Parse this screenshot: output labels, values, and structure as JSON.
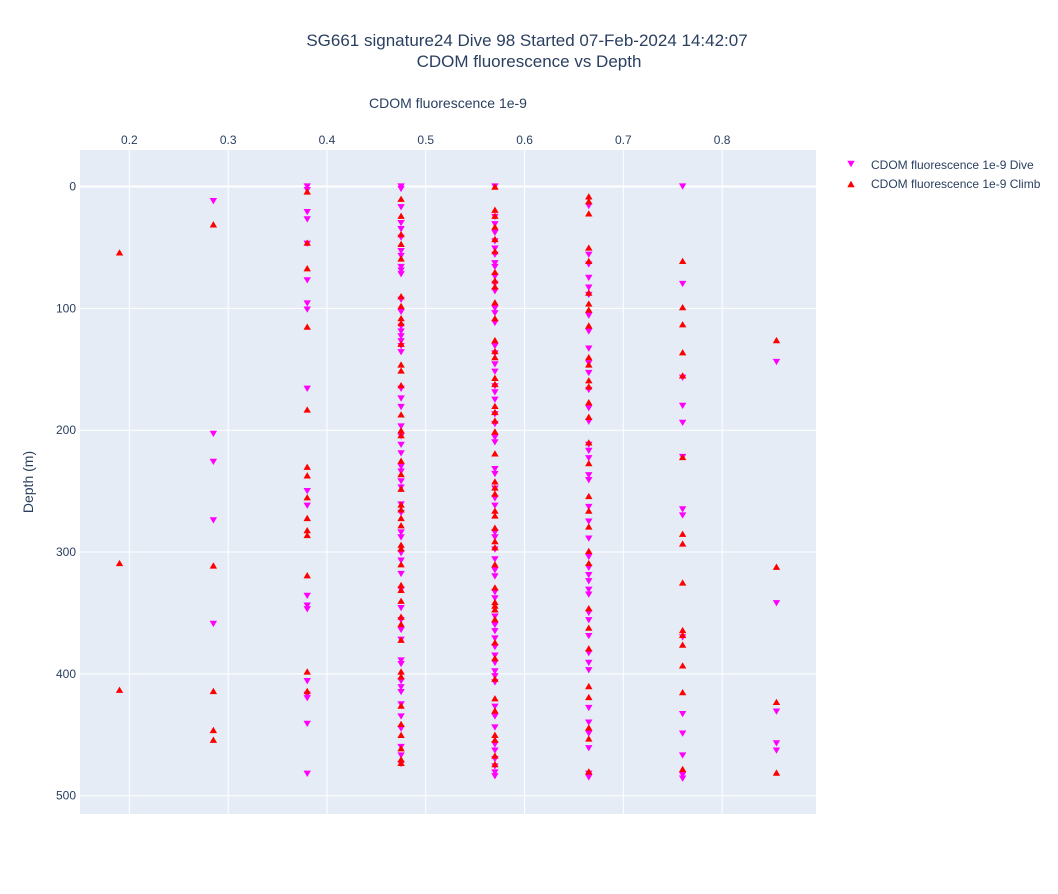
{
  "chart_data": {
    "type": "scatter",
    "title": "SG661 signature24 Dive 98 Started 07-Feb-2024 14:42:07",
    "subtitle": "CDOM fluorescence vs Depth",
    "xlabel": "CDOM fluorescence 1e-9",
    "ylabel": "Depth (m)",
    "x_axis_position": "top",
    "y_axis_reversed": true,
    "xlim": [
      0.15,
      0.895
    ],
    "ylim": [
      -30,
      515
    ],
    "x_ticks": [
      0.2,
      0.3,
      0.4,
      0.5,
      0.6,
      0.7,
      0.8
    ],
    "x_tick_labels": [
      "0.2",
      "0.3",
      "0.4",
      "0.5",
      "0.6",
      "0.7",
      "0.8"
    ],
    "y_ticks": [
      0,
      100,
      200,
      300,
      400,
      500
    ],
    "y_tick_labels": [
      "0",
      "100",
      "200",
      "300",
      "400",
      "500"
    ],
    "grid": true,
    "legend_position": "top-right",
    "series": [
      {
        "name": "CDOM fluorescence 1e-9 Dive",
        "marker": "triangle-down",
        "color": "#ff00ff",
        "columns": [
          {
            "x": 0.285,
            "depths": [
              12,
              203,
              226,
              274,
              359
            ]
          },
          {
            "x": 0.38,
            "depths": [
              0,
              3,
              21,
              27,
              47,
              77,
              96,
              101,
              166,
              250,
              262,
              336,
              344,
              347,
              406,
              417,
              420,
              441,
              482
            ]
          },
          {
            "x": 0.475,
            "depths": [
              0,
              2,
              17,
              30,
              35,
              42,
              53,
              57,
              66,
              69,
              72,
              93,
              103,
              115,
              119,
              123,
              127,
              131,
              136,
              166,
              174,
              181,
              197,
              205,
              212,
              219,
              230,
              234,
              242,
              247,
              261,
              268,
              284,
              288,
              301,
              307,
              318,
              331,
              346,
              356,
              364,
              372,
              389,
              392,
              406,
              411,
              415,
              425,
              435,
              445,
              460,
              467,
              474
            ]
          },
          {
            "x": 0.57,
            "depths": [
              0,
              25,
              31,
              38,
              45,
              51,
              56,
              63,
              66,
              74,
              80,
              86,
              100,
              104,
              112,
              131,
              137,
              146,
              152,
              164,
              169,
              175,
              187,
              195,
              206,
              210,
              232,
              236,
              248,
              256,
              262,
              284,
              288,
              298,
              306,
              315,
              320,
              333,
              338,
              353,
              360,
              365,
              371,
              378,
              385,
              391,
              398,
              402,
              407,
              427,
              435,
              444,
              458,
              463,
              470,
              476,
              481,
              484
            ]
          },
          {
            "x": 0.665,
            "depths": [
              16,
              56,
              64,
              75,
              83,
              89,
              106,
              119,
              133,
              145,
              153,
              167,
              182,
              193,
              212,
              217,
              223,
              237,
              241,
              263,
              275,
              289,
              304,
              313,
              319,
              324,
              331,
              335,
              350,
              356,
              369,
              383,
              391,
              397,
              428,
              440,
              449,
              461,
              482,
              485
            ]
          },
          {
            "x": 0.76,
            "depths": [
              0,
              80,
              157,
              180,
              194,
              222,
              265,
              270,
              370,
              433,
              449,
              467,
              483,
              486
            ]
          },
          {
            "x": 0.855,
            "depths": [
              144,
              342,
              431,
              457,
              463
            ]
          }
        ]
      },
      {
        "name": "CDOM fluorescence 1e-9 Climb",
        "marker": "triangle-up",
        "color": "#ff0000",
        "columns": [
          {
            "x": 0.19,
            "depths": [
              54,
              309,
              413
            ]
          },
          {
            "x": 0.285,
            "depths": [
              31,
              311,
              414,
              446,
              454
            ]
          },
          {
            "x": 0.38,
            "depths": [
              4,
              46,
              67,
              115,
              183,
              230,
              237,
              255,
              272,
              282,
              286,
              319,
              398,
              414
            ]
          },
          {
            "x": 0.475,
            "depths": [
              10,
              24,
              39,
              47,
              59,
              90,
              98,
              108,
              112,
              129,
              146,
              151,
              163,
              187,
              200,
              204,
              225,
              236,
              248,
              261,
              265,
              272,
              278,
              294,
              297,
              310,
              327,
              331,
              340,
              353,
              359,
              372,
              398,
              402,
              426,
              441,
              450,
              461,
              470,
              473
            ]
          },
          {
            "x": 0.57,
            "depths": [
              0,
              19,
              24,
              33,
              43,
              53,
              70,
              77,
              82,
              95,
              108,
              126,
              135,
              140,
              157,
              162,
              180,
              185,
              192,
              201,
              219,
              242,
              247,
              252,
              266,
              270,
              280,
              291,
              296,
              310,
              329,
              341,
              344,
              347,
              355,
              374,
              387,
              404,
              420,
              430,
              450,
              454,
              467,
              474
            ]
          },
          {
            "x": 0.665,
            "depths": [
              8,
              12,
              22,
              50,
              61,
              87,
              96,
              101,
              114,
              140,
              146,
              159,
              164,
              177,
              189,
              210,
              227,
              254,
              266,
              279,
              299,
              309,
              346,
              362,
              379,
              410,
              419,
              444,
              453,
              480
            ]
          },
          {
            "x": 0.76,
            "depths": [
              61,
              99,
              113,
              136,
              155,
              222,
              285,
              293,
              325,
              364,
              368,
              376,
              393,
              415,
              478
            ]
          },
          {
            "x": 0.855,
            "depths": [
              126,
              312,
              423,
              481
            ]
          }
        ]
      }
    ]
  }
}
